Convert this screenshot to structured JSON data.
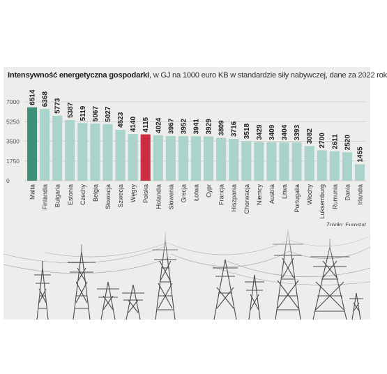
{
  "title_bold": "Intensywność energetyczna gospodarki",
  "title_rest": ", w GJ na 1000 euro KB w standardzie siły nabywczej, dane za 2022 rok",
  "source": "Źródło: Eurostat",
  "colors": {
    "default": "#a9d3cb",
    "first": "#3f8f7a",
    "highlight": "#cc2f3f",
    "background": "#ededec"
  },
  "chart_data": {
    "type": "bar",
    "categories": [
      "Malta",
      "Finlandia",
      "Bułgaria",
      "Estonia",
      "Czechy",
      "Belgia",
      "Słowacja",
      "Szwecja",
      "Węgry",
      "Polska",
      "Holandia",
      "Słowenia",
      "Grecja",
      "Łotwa",
      "Cypr",
      "Francja",
      "Hiszpania",
      "Chorwacja",
      "Niemcy",
      "Austria",
      "Litwa",
      "Portugalia",
      "Włochy",
      "Luksemburg",
      "Rumunia",
      "Dania",
      "Irlandia"
    ],
    "values": [
      6514,
      6368,
      5773,
      5387,
      5119,
      5067,
      5027,
      4523,
      4140,
      4115,
      4024,
      3967,
      3952,
      3941,
      3929,
      3809,
      3716,
      3518,
      3429,
      3409,
      3404,
      3393,
      3082,
      2700,
      2611,
      2520,
      1455
    ],
    "highlight": [
      "Malta",
      "Polska"
    ],
    "yticks": [
      0,
      1750,
      3500,
      5250,
      7000
    ],
    "ylim": [
      0,
      7000
    ],
    "grid": true
  }
}
